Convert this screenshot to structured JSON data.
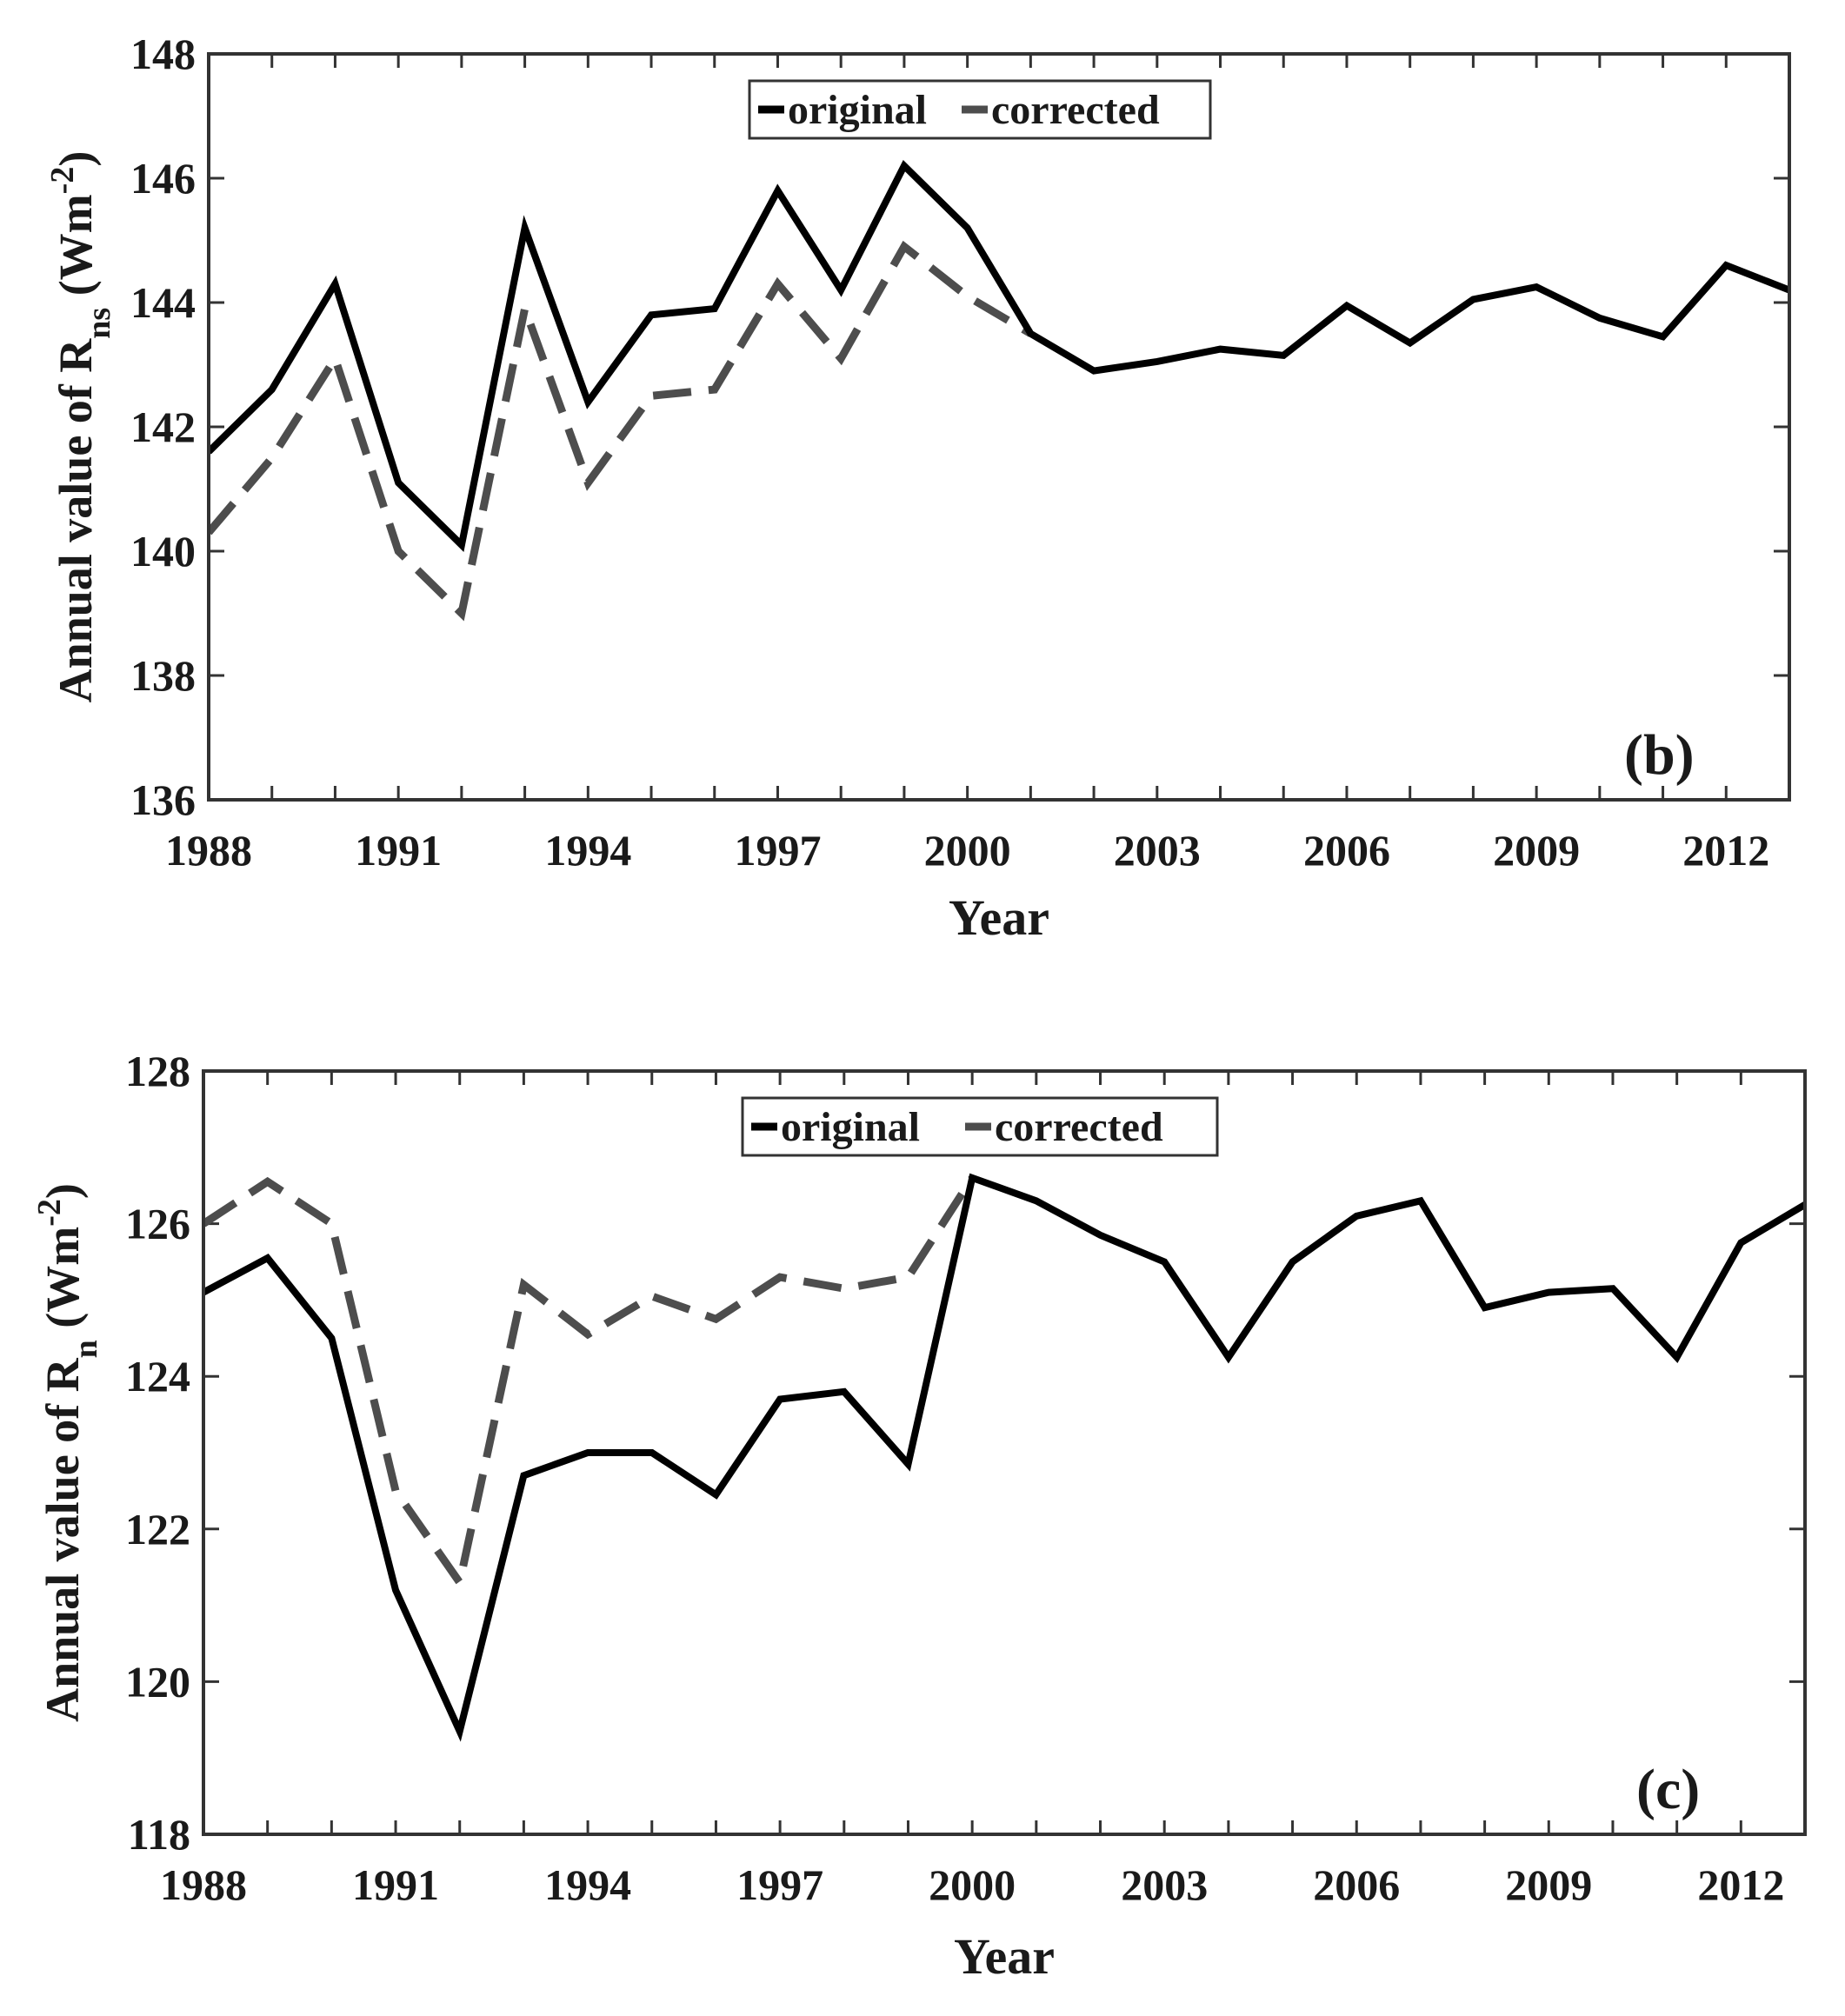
{
  "chart_data": [
    {
      "type": "line",
      "panel_label": "(b)",
      "xlabel": "Year",
      "ylabel": {
        "prefix": "Annual value of  R",
        "subscript": "ns",
        "units_open": "  (Wm",
        "superscript": "-2",
        "units_close": ")"
      },
      "xlim": [
        1988,
        2013
      ],
      "ylim": [
        136,
        148
      ],
      "x_ticks": [
        "1988",
        "1991",
        "1994",
        "1997",
        "2000",
        "2003",
        "2006",
        "2009",
        "2012"
      ],
      "y_ticks": [
        "136",
        "138",
        "140",
        "142",
        "144",
        "146",
        "148"
      ],
      "legend": {
        "position": "top-center",
        "entries": [
          "original",
          "corrected"
        ]
      },
      "series": [
        {
          "name": "original",
          "style": "solid",
          "color": "#000000",
          "x": [
            1988,
            1989,
            1990,
            1991,
            1992,
            1993,
            1994,
            1995,
            1996,
            1997,
            1998,
            1999,
            2000,
            2001,
            2002,
            2003,
            2004,
            2005,
            2006,
            2007,
            2008,
            2009,
            2010,
            2011,
            2012,
            2013
          ],
          "y": [
            141.6,
            142.6,
            144.3,
            141.1,
            140.1,
            145.2,
            142.4,
            143.8,
            143.9,
            145.8,
            144.2,
            146.2,
            145.2,
            143.5,
            142.9,
            143.05,
            143.25,
            143.15,
            143.95,
            143.35,
            144.05,
            144.25,
            143.75,
            143.45,
            144.6,
            144.2
          ]
        },
        {
          "name": "corrected",
          "style": "dashed",
          "color": "#4d4d4d",
          "x": [
            1988,
            1989,
            1990,
            1991,
            1992,
            1993,
            1994,
            1995,
            1996,
            1997,
            1998,
            1999,
            2000,
            2001
          ],
          "y": [
            140.3,
            141.5,
            143.1,
            140.0,
            139.0,
            143.9,
            141.1,
            142.5,
            142.6,
            144.3,
            143.1,
            144.9,
            144.1,
            143.5
          ]
        }
      ]
    },
    {
      "type": "line",
      "panel_label": "(c)",
      "xlabel": "Year",
      "ylabel": {
        "prefix": "Annual value of  R",
        "subscript": "n",
        "units_open": "  (Wm",
        "superscript": "-2",
        "units_close": ")"
      },
      "xlim": [
        1988,
        2013
      ],
      "ylim": [
        118,
        128
      ],
      "x_ticks": [
        "1988",
        "1991",
        "1994",
        "1997",
        "2000",
        "2003",
        "2006",
        "2009",
        "2012"
      ],
      "y_ticks": [
        "118",
        "120",
        "122",
        "124",
        "126",
        "128"
      ],
      "legend": {
        "position": "top-center",
        "entries": [
          "original",
          "corrected"
        ]
      },
      "series": [
        {
          "name": "original",
          "style": "solid",
          "color": "#000000",
          "x": [
            1988,
            1989,
            1990,
            1991,
            1992,
            1993,
            1994,
            1995,
            1996,
            1997,
            1998,
            1999,
            2000,
            2001,
            2002,
            2003,
            2004,
            2005,
            2006,
            2007,
            2008,
            2009,
            2010,
            2011,
            2012,
            2013
          ],
          "y": [
            125.1,
            125.55,
            124.5,
            121.2,
            119.35,
            122.7,
            123.0,
            123.0,
            122.45,
            123.7,
            123.8,
            122.85,
            126.6,
            126.3,
            125.85,
            125.5,
            124.25,
            125.5,
            126.1,
            126.3,
            124.9,
            125.1,
            125.15,
            124.25,
            125.75,
            126.25
          ]
        },
        {
          "name": "corrected",
          "style": "dashed",
          "color": "#4d4d4d",
          "x": [
            1988,
            1989,
            1990,
            1991,
            1992,
            1993,
            1994,
            1995,
            1996,
            1997,
            1998,
            1999,
            2000
          ],
          "y": [
            126.0,
            126.55,
            126.0,
            122.5,
            121.3,
            125.2,
            124.55,
            125.05,
            124.75,
            125.3,
            125.15,
            125.3,
            126.6
          ]
        }
      ]
    }
  ]
}
